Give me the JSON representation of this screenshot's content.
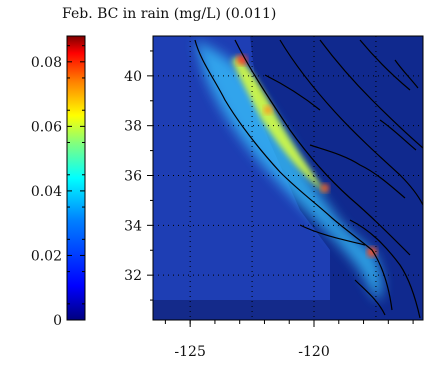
{
  "title": "Feb. BC in rain (mg/L) (0.011)",
  "colorbar": {
    "min": 0,
    "max": 0.088,
    "ticks": [
      {
        "value": 0,
        "label": "0"
      },
      {
        "value": 0.02,
        "label": "0.02"
      },
      {
        "value": 0.04,
        "label": "0.04"
      },
      {
        "value": 0.06,
        "label": "0.06"
      },
      {
        "value": 0.08,
        "label": "0.08"
      }
    ],
    "colors": [
      "#00007f",
      "#0000ff",
      "#0080ff",
      "#00ffff",
      "#80ff80",
      "#ffff00",
      "#ff8000",
      "#ff0000",
      "#7f0000"
    ]
  },
  "map": {
    "lon_range": [
      -126.5,
      -115.6
    ],
    "lat_range": [
      30.2,
      41.6
    ],
    "lat_ticks": [
      {
        "value": 32,
        "label": "32"
      },
      {
        "value": 34,
        "label": "34"
      },
      {
        "value": 36,
        "label": "36"
      },
      {
        "value": 38,
        "label": "38"
      },
      {
        "value": 40,
        "label": "40"
      }
    ],
    "lon_ticks": [
      {
        "value": -125,
        "label": "-125"
      },
      {
        "value": -120,
        "label": "-120"
      }
    ],
    "gridlines": "dotted",
    "background_color": "#1e3eb4"
  }
}
